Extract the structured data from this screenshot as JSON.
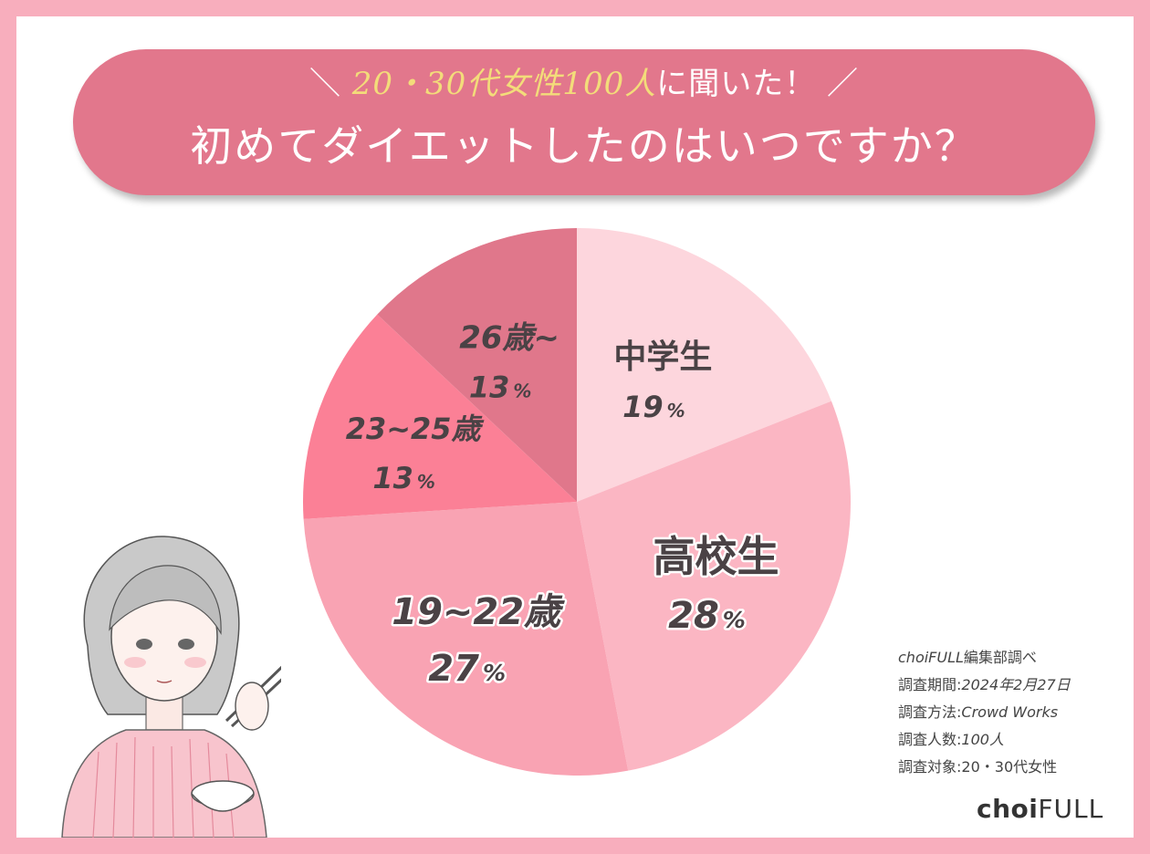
{
  "header": {
    "subtitle_prefix": "＼",
    "subtitle_highlight": "20・30代女性100人",
    "subtitle_rest": "に聞いた！",
    "subtitle_suffix": "／",
    "title": "初めてダイエットしたのはいつですか？"
  },
  "chart_data": {
    "type": "pie",
    "title": "初めてダイエットしたのはいつですか？",
    "categories": [
      "中学生",
      "高校生",
      "19~22歳",
      "23~25歳",
      "26歳~"
    ],
    "values": [
      19,
      28,
      27,
      13,
      13
    ],
    "unit": "%",
    "labels": [
      {
        "category": "中学生",
        "value": "19",
        "unit": "%"
      },
      {
        "category": "高校生",
        "value": "28",
        "unit": "%"
      },
      {
        "category": "19~22歳",
        "value": "27",
        "unit": "%"
      },
      {
        "category": "23~25歳",
        "value": "13",
        "unit": "%"
      },
      {
        "category": "26歳~",
        "value": "13",
        "unit": "%"
      }
    ],
    "colors": [
      "#fdd6dd",
      "#fbb6c3",
      "#f9a3b3",
      "#fb8096",
      "#e0778b"
    ],
    "start": "12 o'clock",
    "direction": "clockwise"
  },
  "credits": {
    "line1_brand": "choiFULL",
    "line1_rest": "編集部調べ",
    "line2_label": "調査期間:",
    "line2_value": "2024年2月27日",
    "line3_label": "調査方法:",
    "line3_value": "Crowd Works",
    "line4_label": "調査人数:",
    "line4_value": "100人",
    "line5_label": "調査対象:",
    "line5_value": "20・30代女性"
  },
  "logo": {
    "part1": "choi",
    "part2": "FULL"
  },
  "colors": {
    "frame": "#f8aebd",
    "banner": "#e2778c",
    "highlight": "#f3dc7a"
  }
}
